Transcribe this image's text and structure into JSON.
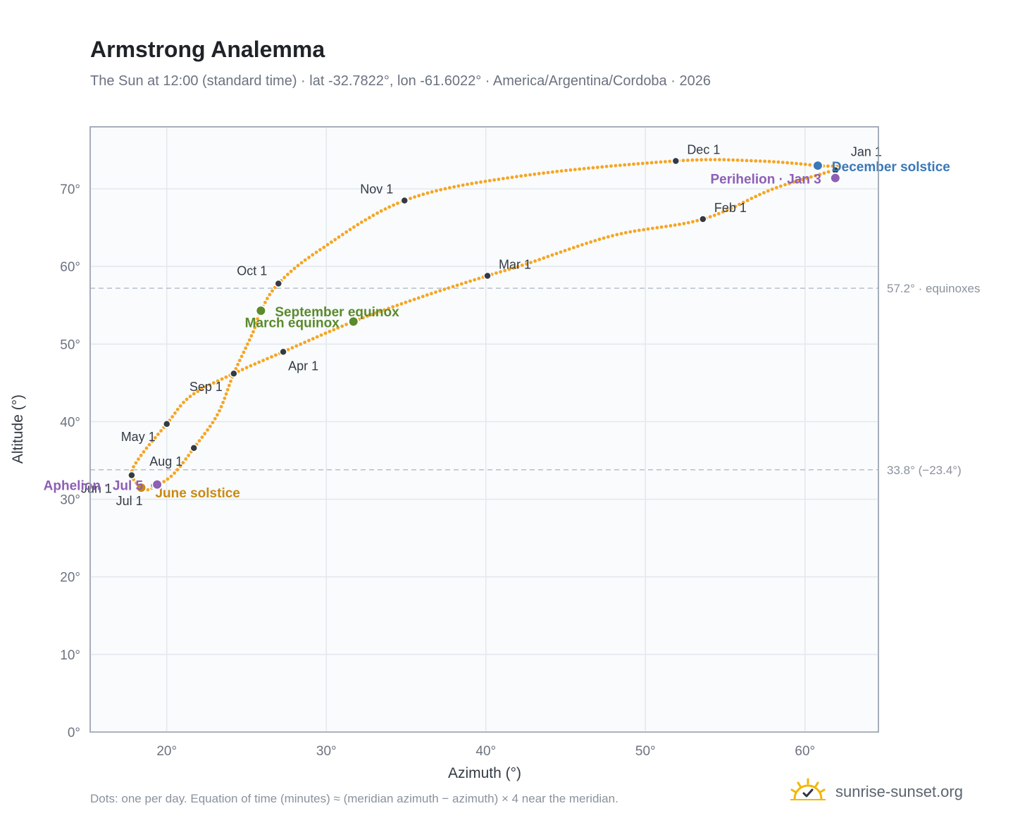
{
  "title": "Armstrong Analemma",
  "subtitle": "The Sun at 12:00 (standard time) · lat -32.7822°, lon -61.6022° · America/Argentina/Cordoba · 2026",
  "footer_note": "Dots: one per day. Equation of time (minutes) ≈ (meridian azimuth − azimuth) × 4 near the meridian.",
  "brand": {
    "name": "sunrise-sunset.org",
    "icon": "sun-logo-icon",
    "color": "#f2b705"
  },
  "colors": {
    "curve": "#f5a623",
    "month_marker": "#333a44",
    "equinox": "#5a8a2c",
    "december_solstice": "#3a78b8",
    "june_solstice": "#c98a12",
    "apsis": "#8d5fb5",
    "ref_line": "#b8c0c9",
    "plot_bg": "#f9fbfd",
    "grid": "#e3e8ee",
    "axis_text": "#6b7280"
  },
  "chart_data": {
    "type": "scatter",
    "xlabel": "Azimuth (°)",
    "ylabel": "Altitude (°)",
    "xlim": [
      15.2,
      64.6
    ],
    "ylim": [
      0,
      78
    ],
    "x_ticks": [
      20,
      30,
      40,
      50,
      60
    ],
    "y_ticks": [
      0,
      10,
      20,
      30,
      40,
      50,
      60,
      70
    ],
    "x_tick_labels": [
      "20°",
      "30°",
      "40°",
      "50°",
      "60°"
    ],
    "y_tick_labels": [
      "0°",
      "10°",
      "20°",
      "30°",
      "40°",
      "50°",
      "60°",
      "70°"
    ],
    "grid": true,
    "reference_lines": [
      {
        "y": 57.2,
        "label": "57.2° · equinoxes"
      },
      {
        "y": 33.8,
        "label": "33.8° (−23.4°)"
      }
    ],
    "path_knots": [
      [
        62.0,
        72.6
      ],
      [
        58.0,
        70.0
      ],
      [
        53.6,
        66.1
      ],
      [
        48.0,
        64.0
      ],
      [
        42.5,
        60.3
      ],
      [
        40.1,
        58.8
      ],
      [
        36.0,
        56.1
      ],
      [
        31.7,
        52.9
      ],
      [
        27.3,
        49.0
      ],
      [
        24.2,
        46.2
      ],
      [
        21.5,
        43.3
      ],
      [
        20.0,
        39.7
      ],
      [
        18.3,
        35.4
      ],
      [
        17.8,
        33.1
      ],
      [
        18.6,
        31.3
      ],
      [
        19.3,
        31.7
      ],
      [
        20.4,
        33.2
      ],
      [
        21.7,
        36.6
      ],
      [
        23.2,
        41.0
      ],
      [
        24.2,
        46.2
      ],
      [
        25.4,
        51.5
      ],
      [
        25.9,
        54.3
      ],
      [
        27.0,
        57.8
      ],
      [
        29.5,
        62.0
      ],
      [
        34.9,
        68.5
      ],
      [
        42.0,
        71.6
      ],
      [
        51.9,
        73.6
      ],
      [
        57.0,
        73.6
      ],
      [
        60.8,
        73.0
      ],
      [
        62.0,
        72.6
      ]
    ],
    "month_markers": [
      {
        "label": "Jan 1",
        "x": 61.9,
        "y": 72.4
      },
      {
        "label": "Feb 1",
        "x": 53.6,
        "y": 66.1
      },
      {
        "label": "Mar 1",
        "x": 40.1,
        "y": 58.8
      },
      {
        "label": "Apr 1",
        "x": 27.3,
        "y": 49.0
      },
      {
        "label": "May 1",
        "x": 20.0,
        "y": 39.7
      },
      {
        "label": "Jun 1",
        "x": 17.8,
        "y": 33.1
      },
      {
        "label": "Jul 1",
        "x": 19.2,
        "y": 31.8
      },
      {
        "label": "Aug 1",
        "x": 21.7,
        "y": 36.6
      },
      {
        "label": "Sep 1",
        "x": 24.2,
        "y": 46.2
      },
      {
        "label": "Oct 1",
        "x": 27.0,
        "y": 57.8
      },
      {
        "label": "Nov 1",
        "x": 34.9,
        "y": 68.5
      },
      {
        "label": "Dec 1",
        "x": 51.9,
        "y": 73.6
      }
    ],
    "events": [
      {
        "label": "December solstice",
        "x": 60.8,
        "y": 73.0,
        "kind": "december_solstice"
      },
      {
        "label": "Perihelion · Jan 3",
        "x": 61.9,
        "y": 71.4,
        "kind": "apsis"
      },
      {
        "label": "September equinox",
        "x": 25.9,
        "y": 54.3,
        "kind": "equinox"
      },
      {
        "label": "March equinox",
        "x": 31.7,
        "y": 52.9,
        "kind": "equinox"
      },
      {
        "label": "June solstice",
        "x": 18.4,
        "y": 31.5,
        "kind": "june_solstice"
      },
      {
        "label": "Aphelion · Jul 5",
        "x": 19.4,
        "y": 31.9,
        "kind": "apsis"
      }
    ]
  }
}
